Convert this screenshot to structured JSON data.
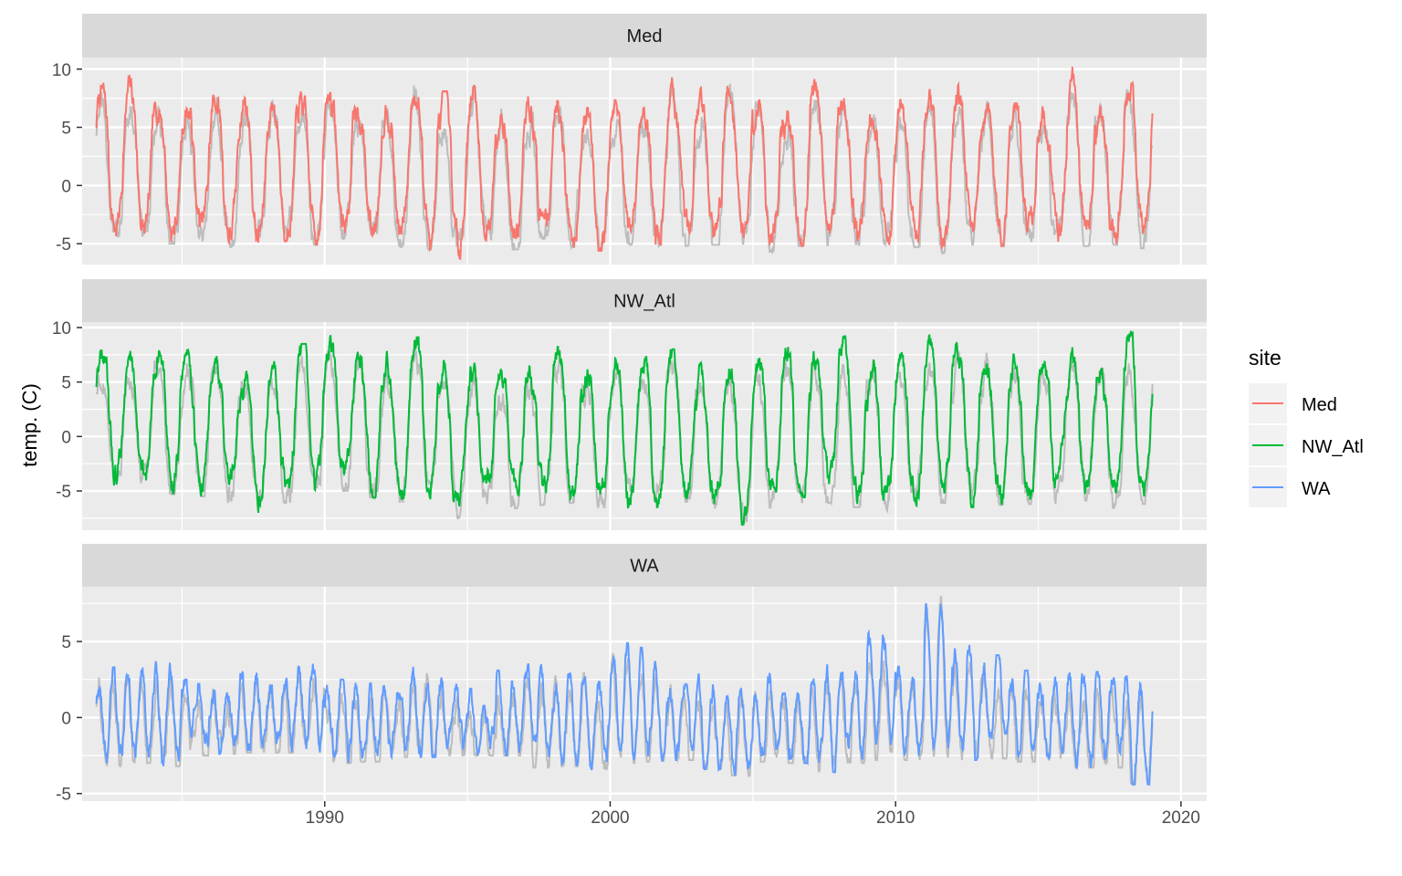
{
  "chart_data": {
    "type": "line",
    "ylabel": "temp. (C)",
    "xlabel": "",
    "x_ticks": [
      1990,
      2000,
      2010,
      2020
    ],
    "xlim": [
      1981.5,
      2020.9
    ],
    "x_range": [
      1982.0,
      2019.0
    ],
    "grid": true,
    "facet_by": "site",
    "legend": {
      "title": "site",
      "position": "right",
      "entries": [
        "Med",
        "NW_Atl",
        "WA"
      ]
    },
    "background_line_color": "#bdbdbd",
    "panels": [
      {
        "name": "Med",
        "color": "#F8766D",
        "ylim": [
          -6.8,
          11.0
        ],
        "y_ticks": [
          -5,
          0,
          5,
          10
        ],
        "y_tick_labels": [
          "-5",
          "0",
          "5",
          "10"
        ],
        "annual_peaks": [
          9.2,
          9.5,
          8.0,
          7.9,
          8.7,
          8.6,
          8.2,
          8.0,
          9.0,
          7.8,
          8.6,
          9.7,
          8.1,
          9.2,
          8.2,
          7.7,
          8.1,
          7.2,
          7.3,
          8.1,
          9.3,
          8.4,
          9.8,
          8.3,
          7.3,
          9.7,
          8.8,
          7.8,
          7.5,
          8.7,
          9.5,
          7.7,
          8.5,
          6.8,
          10.4,
          7.8,
          10.2
        ],
        "annual_troughs": [
          -4.8,
          -5.2,
          -5.0,
          -4.8,
          -5.3,
          -5.5,
          -4.8,
          -5.1,
          -4.6,
          -4.9,
          -5.3,
          -5.5,
          -6.3,
          -5.2,
          -5.5,
          -4.6,
          -5.3,
          -5.6,
          -5.1,
          -5.4,
          -5.2,
          -5.1,
          -5.0,
          -5.7,
          -5.2,
          -5.2,
          -5.1,
          -5.3,
          -5.3,
          -5.8,
          -5.1,
          -5.2,
          -5.3,
          -5.0,
          -5.2,
          -5.1,
          -5.4
        ],
        "series": [
          {
            "name": "Med",
            "x_start": 1982.0,
            "x_end": 2019.0
          }
        ]
      },
      {
        "name": "NW_Atl",
        "color": "#00BA38",
        "ylim": [
          -8.6,
          10.5
        ],
        "y_ticks": [
          -5,
          0,
          5,
          10
        ],
        "y_tick_labels": [
          "-5",
          "0",
          "5",
          "10"
        ],
        "annual_peaks": [
          8.5,
          8.2,
          9.2,
          8.5,
          8.0,
          6.5,
          7.0,
          8.5,
          9.3,
          8.6,
          8.1,
          9.6,
          8.1,
          7.2,
          6.2,
          7.6,
          9.1,
          7.8,
          8.7,
          8.9,
          8.0,
          7.0,
          6.8,
          7.9,
          8.9,
          8.0,
          9.2,
          7.8,
          8.5,
          9.5,
          9.0,
          8.3,
          7.6,
          8.8,
          8.9,
          9.0,
          9.7
        ],
        "annual_troughs": [
          -4.5,
          -4.8,
          -5.3,
          -5.5,
          -6.2,
          -7.2,
          -6.1,
          -5.6,
          -5.0,
          -5.6,
          -6.0,
          -6.0,
          -7.5,
          -6.2,
          -6.6,
          -6.3,
          -6.1,
          -6.5,
          -6.6,
          -6.5,
          -6.0,
          -7.0,
          -8.1,
          -6.6,
          -6.3,
          -6.1,
          -6.5,
          -6.8,
          -6.4,
          -6.1,
          -6.5,
          -6.3,
          -6.2,
          -6.1,
          -5.9,
          -7.5,
          -6.2
        ],
        "series": [
          {
            "name": "NW_Atl",
            "x_start": 1982.0,
            "x_end": 2019.0
          }
        ]
      },
      {
        "name": "WA",
        "color": "#619CFF",
        "ylim": [
          -5.5,
          8.6
        ],
        "y_ticks": [
          -5,
          0,
          5
        ],
        "y_tick_labels": [
          "-5",
          "0",
          "5"
        ],
        "annual_peaks": [
          3.3,
          3.6,
          3.7,
          2.5,
          2.4,
          3.2,
          2.9,
          3.9,
          2.5,
          2.3,
          3.0,
          3.4,
          2.8,
          1.9,
          3.1,
          3.5,
          2.9,
          3.3,
          4.9,
          4.6,
          2.2,
          2.9,
          2.0,
          3.0,
          1.6,
          3.6,
          3.7,
          5.6,
          3.4,
          8.2,
          4.8,
          4.1,
          3.1,
          2.9,
          2.9,
          3.0,
          2.7
        ],
        "annual_troughs": [
          -3.2,
          -3.0,
          -3.2,
          -2.5,
          -2.4,
          -2.3,
          -2.3,
          -2.3,
          -3.0,
          -2.9,
          -2.6,
          -2.6,
          -2.5,
          -2.5,
          -2.5,
          -3.3,
          -3.2,
          -3.4,
          -3.0,
          -2.9,
          -2.8,
          -3.4,
          -3.8,
          -2.9,
          -3.0,
          -3.6,
          -3.0,
          -2.8,
          -2.8,
          -2.9,
          -2.8,
          -2.7,
          -2.9,
          -2.7,
          -3.3,
          -3.3,
          -4.4
        ],
        "series": [
          {
            "name": "WA",
            "x_start": 1982.0,
            "x_end": 2019.0
          }
        ]
      }
    ]
  }
}
